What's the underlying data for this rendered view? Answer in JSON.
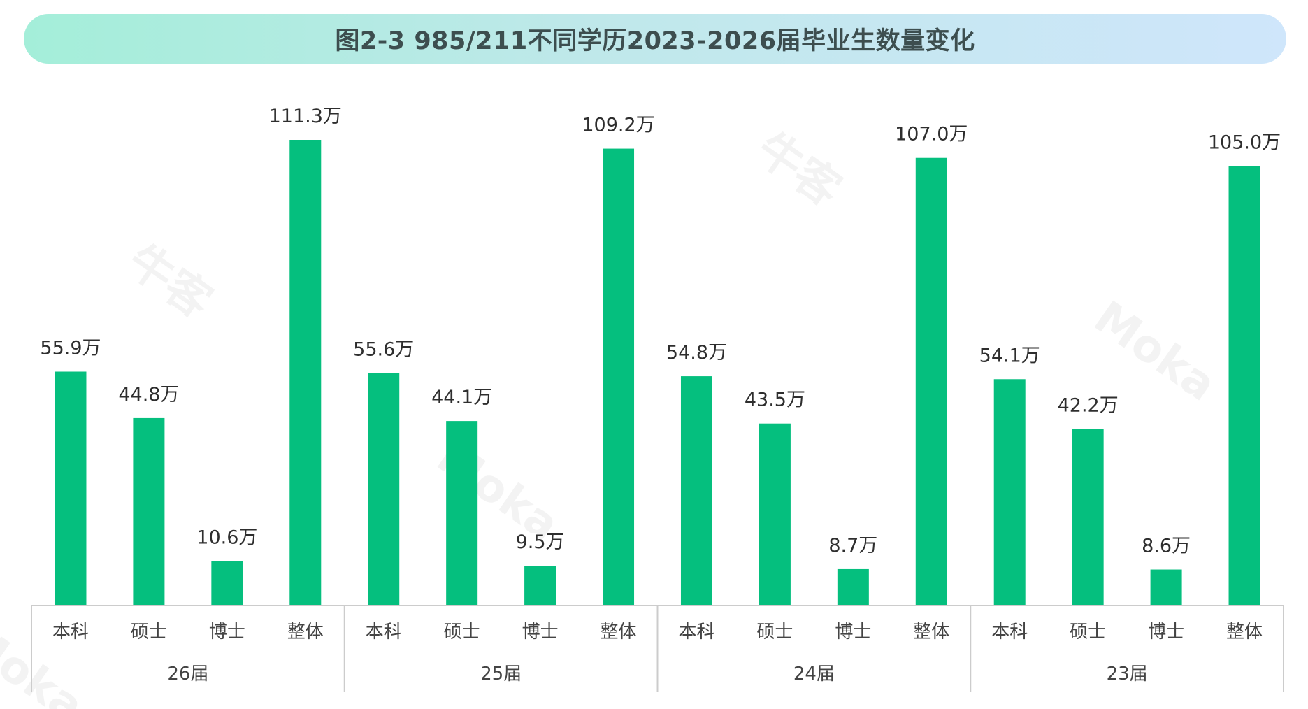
{
  "colors": {
    "bar": "#05bf7e",
    "axis": "#cccccc",
    "text": "#2e2e2e"
  },
  "chart_data": {
    "type": "bar",
    "title": "图2-3  985/211不同学历2023-2026届毕业生数量变化",
    "value_suffix": "万",
    "ylim": [
      0,
      120
    ],
    "grid": false,
    "legend": "none",
    "groups": [
      {
        "name": "26届",
        "categories": [
          "本科",
          "硕士",
          "博士",
          "整体"
        ],
        "values": [
          55.9,
          44.8,
          10.6,
          111.3
        ],
        "labels": [
          "55.9万",
          "44.8万",
          "10.6万",
          "111.3万"
        ]
      },
      {
        "name": "25届",
        "categories": [
          "本科",
          "硕士",
          "博士",
          "整体"
        ],
        "values": [
          55.6,
          44.1,
          9.5,
          109.2
        ],
        "labels": [
          "55.6万",
          "44.1万",
          "9.5万",
          "109.2万"
        ]
      },
      {
        "name": "24届",
        "categories": [
          "本科",
          "硕士",
          "博士",
          "整体"
        ],
        "values": [
          54.8,
          43.5,
          8.7,
          107.0
        ],
        "labels": [
          "54.8万",
          "43.5万",
          "8.7万",
          "107.0万"
        ]
      },
      {
        "name": "23届",
        "categories": [
          "本科",
          "硕士",
          "博士",
          "整体"
        ],
        "values": [
          54.1,
          42.2,
          8.6,
          105.0
        ],
        "labels": [
          "54.1万",
          "42.2万",
          "8.6万",
          "105.0万"
        ]
      }
    ]
  },
  "watermarks": [
    "牛客",
    "Moka",
    "牛客",
    "Moka",
    "Moka"
  ]
}
